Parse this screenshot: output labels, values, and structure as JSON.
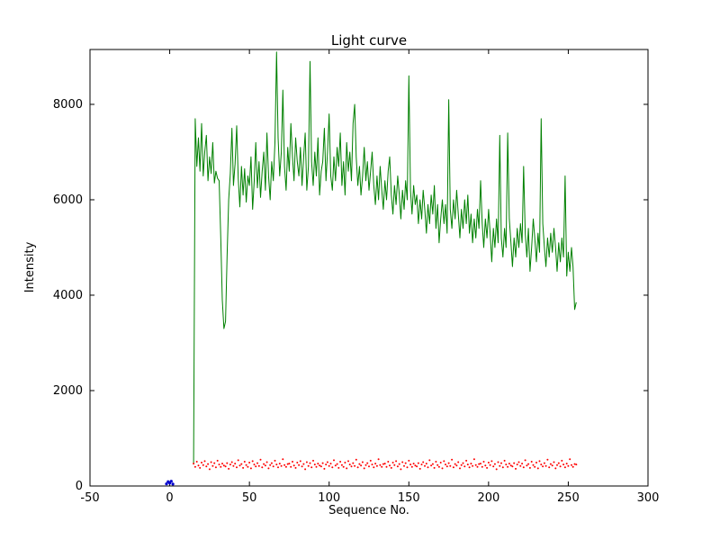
{
  "chart_data": {
    "type": "line",
    "title": "Light curve",
    "xlabel": "Sequence No.",
    "ylabel": "Intensity",
    "xlim": [
      -50,
      300
    ],
    "ylim": [
      0,
      9150
    ],
    "grid": false,
    "legend": "none",
    "xticks": [
      -50,
      0,
      50,
      100,
      150,
      200,
      250,
      300
    ],
    "xtick_labels": [
      "-50",
      "0",
      "50",
      "100",
      "150",
      "200",
      "250",
      "300"
    ],
    "yticks": [
      0,
      2000,
      4000,
      6000,
      8000
    ],
    "ytick_labels": [
      "0",
      "2000",
      "4000",
      "6000",
      "8000"
    ],
    "series": [
      {
        "name": "light-curve-green",
        "color": "#008000",
        "style": "line",
        "x_start": 15,
        "x_step": 1,
        "values": [
          450,
          7700,
          6700,
          7300,
          6600,
          7600,
          6500,
          7000,
          7350,
          6400,
          6900,
          6550,
          7200,
          6350,
          6600,
          6450,
          6400,
          5200,
          3900,
          3300,
          3450,
          4800,
          6000,
          6550,
          7500,
          6300,
          6750,
          7550,
          6450,
          5850,
          6700,
          6100,
          6650,
          5950,
          6500,
          6300,
          6900,
          5800,
          6400,
          7200,
          6250,
          6800,
          6050,
          6600,
          7000,
          6200,
          7400,
          6500,
          6000,
          6800,
          6400,
          7200,
          9100,
          7300,
          6500,
          7000,
          8300,
          6700,
          6200,
          7100,
          6600,
          7600,
          6900,
          6400,
          7300,
          6800,
          6500,
          7100,
          6300,
          6900,
          7400,
          6200,
          6700,
          8900,
          6800,
          6300,
          7000,
          6500,
          7300,
          6100,
          6600,
          6800,
          7500,
          6400,
          7000,
          7800,
          6500,
          6200,
          6900,
          6400,
          7100,
          6700,
          7400,
          6300,
          6800,
          6100,
          7200,
          6600,
          7000,
          6400,
          7600,
          8000,
          6900,
          6300,
          6700,
          6100,
          6500,
          7100,
          6400,
          6800,
          6200,
          6600,
          7000,
          6300,
          5900,
          6500,
          6000,
          6700,
          6200,
          5800,
          6400,
          6000,
          6600,
          6900,
          6100,
          5700,
          6300,
          5900,
          6500,
          6100,
          5600,
          6200,
          5800,
          6400,
          6000,
          8600,
          6200,
          5700,
          6300,
          5900,
          6100,
          5500,
          6000,
          5600,
          6200,
          5800,
          5300,
          5900,
          5500,
          6100,
          5700,
          6300,
          5400,
          5900,
          5100,
          5600,
          6000,
          5500,
          5900,
          5300,
          8100,
          5800,
          5400,
          6000,
          5600,
          6200,
          5700,
          5200,
          5800,
          5400,
          6000,
          5500,
          6100,
          5300,
          5700,
          5100,
          5600,
          5200,
          5800,
          5400,
          6400,
          5500,
          5000,
          5600,
          5200,
          5800,
          5300,
          4700,
          5400,
          5000,
          5600,
          5100,
          7350,
          5200,
          4800,
          5400,
          5000,
          7400,
          5600,
          5100,
          4600,
          5200,
          4800,
          5400,
          5000,
          5500,
          5100,
          6700,
          5300,
          4800,
          5400,
          4500,
          5000,
          5600,
          5200,
          4700,
          5300,
          4900,
          7700,
          5500,
          5000,
          4600,
          5200,
          4800,
          5300,
          4900,
          5400,
          5000,
          4500,
          5100,
          4700,
          5200,
          4800,
          6500,
          4400,
          4900,
          4500,
          5000,
          4600,
          3700,
          3850
        ]
      },
      {
        "name": "background-red-dots",
        "color": "#ff0000",
        "style": "dots",
        "size": 1,
        "x_start": 15,
        "x_step": 1,
        "values": [
          470,
          400,
          510,
          430,
          380,
          490,
          440,
          520,
          410,
          460,
          350,
          500,
          420,
          480,
          390,
          530,
          450,
          400,
          470,
          430,
          410,
          480,
          360,
          450,
          500,
          420,
          470,
          390,
          540,
          430,
          460,
          380,
          510,
          440,
          400,
          490,
          370,
          520,
          450,
          410,
          480,
          420,
          550,
          390,
          460,
          430,
          500,
          370,
          440,
          480,
          410,
          530,
          450,
          390,
          470,
          420,
          560,
          440,
          400,
          460,
          470,
          400,
          510,
          430,
          380,
          490,
          440,
          520,
          410,
          460,
          350,
          500,
          420,
          480,
          390,
          530,
          450,
          400,
          470,
          430,
          410,
          480,
          360,
          450,
          500,
          420,
          470,
          390,
          540,
          430,
          460,
          380,
          510,
          440,
          400,
          490,
          370,
          520,
          450,
          410,
          480,
          420,
          550,
          390,
          460,
          430,
          500,
          370,
          440,
          480,
          410,
          530,
          450,
          390,
          470,
          420,
          560,
          440,
          400,
          460,
          470,
          400,
          510,
          430,
          380,
          490,
          440,
          520,
          410,
          460,
          350,
          500,
          420,
          480,
          390,
          530,
          450,
          400,
          470,
          430,
          410,
          480,
          360,
          450,
          500,
          420,
          470,
          390,
          540,
          430,
          460,
          380,
          510,
          440,
          400,
          490,
          370,
          520,
          450,
          410,
          480,
          420,
          550,
          390,
          460,
          430,
          500,
          370,
          440,
          480,
          410,
          530,
          450,
          390,
          470,
          420,
          560,
          440,
          400,
          460,
          470,
          400,
          510,
          430,
          380,
          490,
          440,
          520,
          410,
          460,
          350,
          500,
          420,
          480,
          390,
          530,
          450,
          400,
          470,
          430,
          410,
          480,
          360,
          450,
          500,
          420,
          470,
          390,
          540,
          430,
          460,
          380,
          510,
          440,
          400,
          490,
          370,
          520,
          450,
          410,
          480,
          420,
          550,
          390,
          460,
          430,
          500,
          370,
          440,
          480,
          410,
          530,
          450,
          390,
          470,
          420,
          560,
          440,
          400,
          460,
          450
        ]
      },
      {
        "name": "origin-blue-marker",
        "color": "#0000cd",
        "style": "dots",
        "size": 1.6,
        "points": [
          [
            -2,
            45
          ],
          [
            -1,
            90
          ],
          [
            0,
            60
          ],
          [
            1,
            100
          ],
          [
            2,
            40
          ]
        ]
      }
    ]
  }
}
